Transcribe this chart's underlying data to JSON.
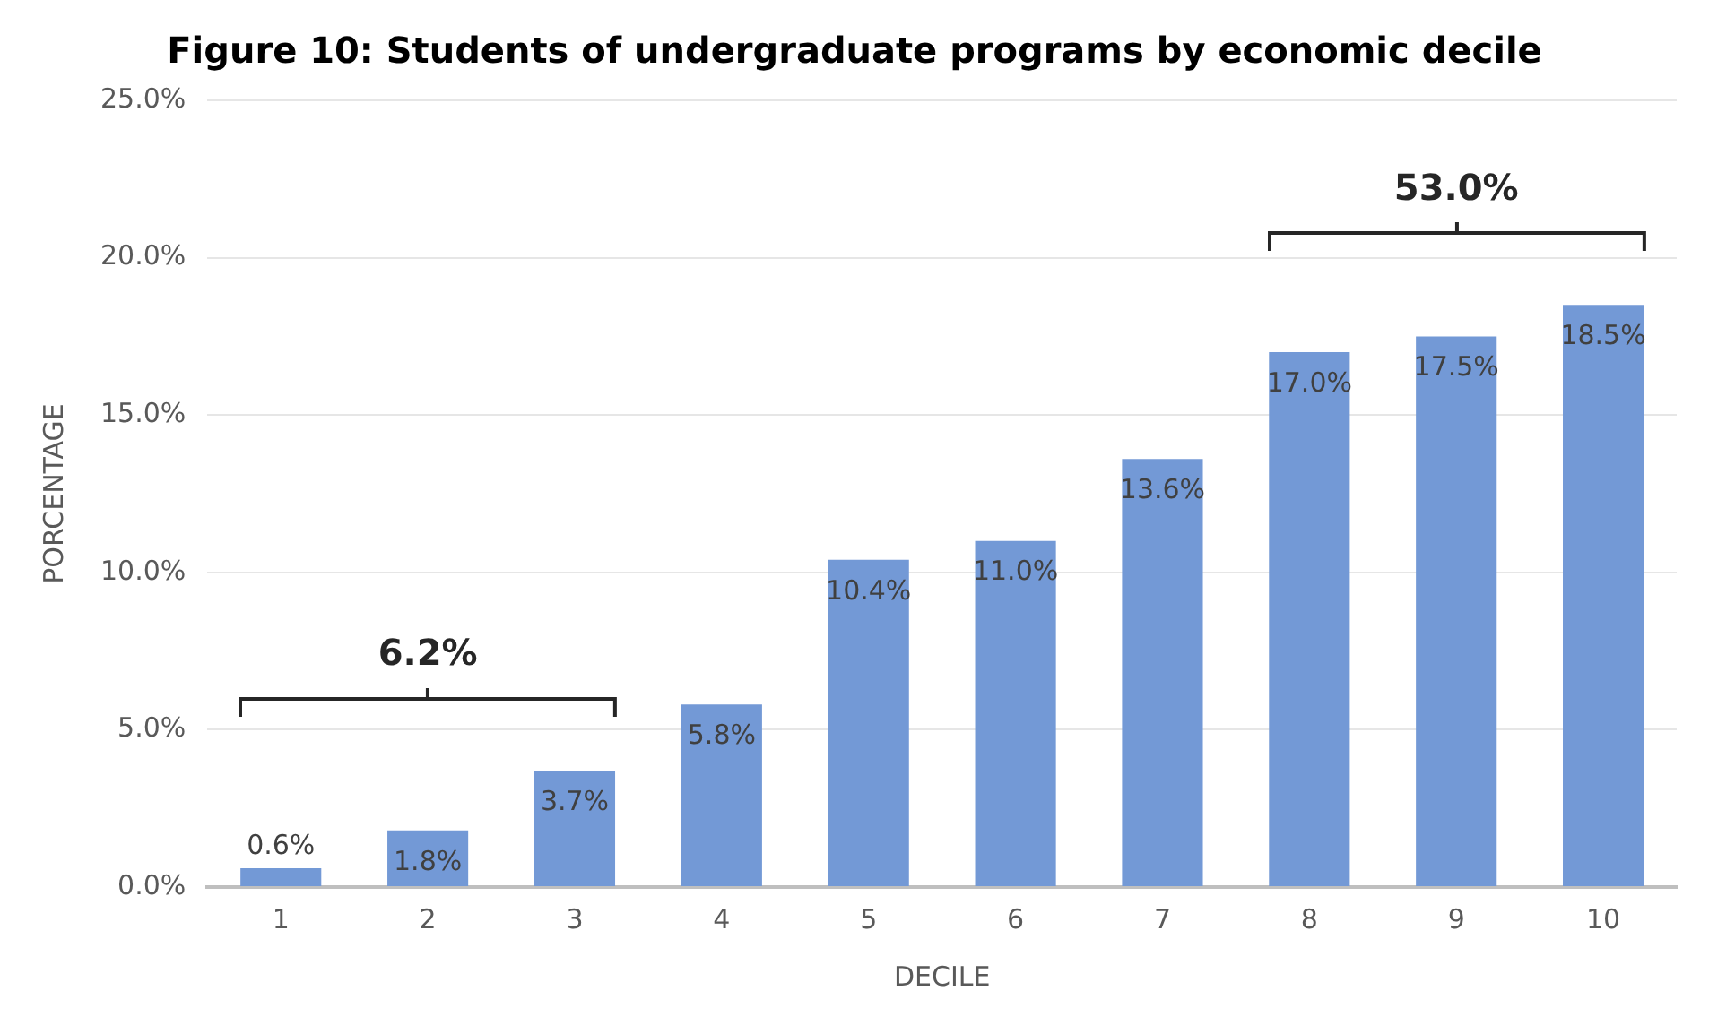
{
  "chart_data": {
    "type": "bar",
    "title": "Figure 10: Students of undergraduate programs by economic decile",
    "xlabel": "DECILE",
    "ylabel": "PORCENTAGE",
    "categories": [
      "1",
      "2",
      "3",
      "4",
      "5",
      "6",
      "7",
      "8",
      "9",
      "10"
    ],
    "values": [
      0.6,
      1.8,
      3.7,
      5.8,
      10.4,
      11.0,
      13.6,
      17.0,
      17.5,
      18.5
    ],
    "value_labels": [
      "0.6%",
      "1.8%",
      "3.7%",
      "5.8%",
      "10.4%",
      "11.0%",
      "13.6%",
      "17.0%",
      "17.5%",
      "18.5%"
    ],
    "color": "#7399d6",
    "ylim": [
      0,
      25
    ],
    "yticks": [
      {
        "value": 0,
        "label": "0.0%"
      },
      {
        "value": 5,
        "label": "5.0%"
      },
      {
        "value": 10,
        "label": "10.0%"
      },
      {
        "value": 15,
        "label": "15.0%"
      },
      {
        "value": 20,
        "label": "20.0%"
      },
      {
        "value": 25,
        "label": "25.0%"
      }
    ],
    "grid": "y",
    "legend": false,
    "annotations": [
      "6.2%",
      "53.0%"
    ]
  }
}
